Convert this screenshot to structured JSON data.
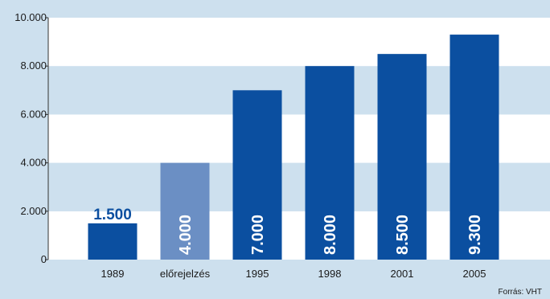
{
  "chart_data": {
    "type": "bar",
    "categories": [
      "1989",
      "előrejelzés",
      "1995",
      "1998",
      "2001",
      "2005"
    ],
    "values": [
      1500,
      4000,
      7000,
      8000,
      8500,
      9300
    ],
    "value_labels": [
      "1.500",
      "4.000",
      "7.000",
      "8.000",
      "8.500",
      "9.300"
    ],
    "highlighted_index": 1,
    "y_ticks": [
      "0",
      "2.000",
      "4.000",
      "6.000",
      "8.000",
      "10.000"
    ],
    "y_tick_values": [
      0,
      2000,
      4000,
      6000,
      8000,
      10000
    ],
    "ylim": [
      0,
      10000
    ],
    "grid": "horizontal bands",
    "source": "Forrás:  VHT",
    "colors": {
      "bar": "#0b4fa0",
      "bar_highlight": "#6b8fc4",
      "band_white": "#ffffff",
      "band_blue": "#cde0ee"
    }
  }
}
